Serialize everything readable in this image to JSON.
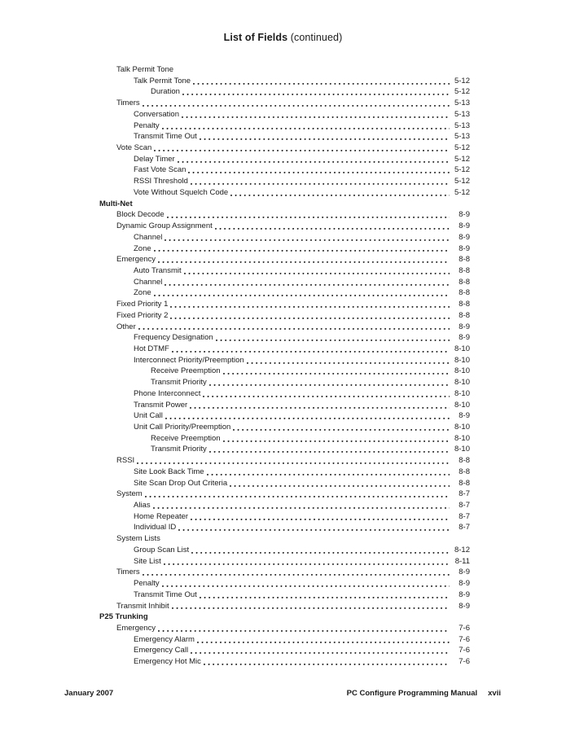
{
  "header": {
    "title_main": "List of Fields",
    "title_suffix": " (continued)"
  },
  "toc": {
    "entries": [
      {
        "level": 1,
        "label": "Talk Permit Tone",
        "page": null
      },
      {
        "level": 2,
        "label": "Talk Permit Tone",
        "page": "5-12"
      },
      {
        "level": 3,
        "label": "Duration",
        "page": "5-12"
      },
      {
        "level": 1,
        "label": "Timers",
        "page": "5-13"
      },
      {
        "level": 2,
        "label": "Conversation",
        "page": "5-13"
      },
      {
        "level": 2,
        "label": "Penalty",
        "page": "5-13"
      },
      {
        "level": 2,
        "label": "Transmit Time Out",
        "page": "5-13"
      },
      {
        "level": 1,
        "label": "Vote Scan",
        "page": "5-12"
      },
      {
        "level": 2,
        "label": "Delay Timer",
        "page": "5-12"
      },
      {
        "level": 2,
        "label": "Fast Vote Scan",
        "page": "5-12"
      },
      {
        "level": 2,
        "label": "RSSI Threshold",
        "page": "5-12"
      },
      {
        "level": 2,
        "label": "Vote Without Squelch Code",
        "page": "5-12"
      },
      {
        "level": 0,
        "label": "Multi-Net",
        "page": null,
        "bold": true
      },
      {
        "level": 1,
        "label": "Block Decode",
        "page": "8-9"
      },
      {
        "level": 1,
        "label": "Dynamic Group Assignment",
        "page": "8-9"
      },
      {
        "level": 2,
        "label": "Channel",
        "page": "8-9"
      },
      {
        "level": 2,
        "label": "Zone",
        "page": "8-9"
      },
      {
        "level": 1,
        "label": "Emergency",
        "page": "8-8"
      },
      {
        "level": 2,
        "label": "Auto Transmit",
        "page": "8-8"
      },
      {
        "level": 2,
        "label": "Channel",
        "page": "8-8"
      },
      {
        "level": 2,
        "label": "Zone",
        "page": "8-8"
      },
      {
        "level": 1,
        "label": "Fixed Priority 1",
        "page": "8-8"
      },
      {
        "level": 1,
        "label": "Fixed Priority 2",
        "page": "8-8"
      },
      {
        "level": 1,
        "label": "Other",
        "page": "8-9"
      },
      {
        "level": 2,
        "label": "Frequency Designation",
        "page": "8-9"
      },
      {
        "level": 2,
        "label": "Hot DTMF",
        "page": "8-10"
      },
      {
        "level": 2,
        "label": "Interconnect Priority/Preemption",
        "page": "8-10"
      },
      {
        "level": 3,
        "label": "Receive Preemption",
        "page": "8-10"
      },
      {
        "level": 3,
        "label": "Transmit Priority",
        "page": "8-10"
      },
      {
        "level": 2,
        "label": "Phone Interconnect",
        "page": "8-10"
      },
      {
        "level": 2,
        "label": "Transmit Power",
        "page": "8-10"
      },
      {
        "level": 2,
        "label": "Unit Call",
        "page": "8-9"
      },
      {
        "level": 2,
        "label": "Unit Call Priority/Preemption",
        "page": "8-10"
      },
      {
        "level": 3,
        "label": "Receive Preemption",
        "page": "8-10"
      },
      {
        "level": 3,
        "label": "Transmit Priority",
        "page": "8-10"
      },
      {
        "level": 1,
        "label": "RSSI",
        "page": "8-8"
      },
      {
        "level": 2,
        "label": "Site Look Back Time",
        "page": "8-8"
      },
      {
        "level": 2,
        "label": "Site Scan Drop Out Criteria",
        "page": "8-8"
      },
      {
        "level": 1,
        "label": "System",
        "page": "8-7"
      },
      {
        "level": 2,
        "label": "Alias",
        "page": "8-7"
      },
      {
        "level": 2,
        "label": "Home Repeater",
        "page": "8-7"
      },
      {
        "level": 2,
        "label": "Individual ID",
        "page": "8-7"
      },
      {
        "level": 1,
        "label": "System Lists",
        "page": null
      },
      {
        "level": 2,
        "label": "Group Scan List",
        "page": "8-12"
      },
      {
        "level": 2,
        "label": "Site List",
        "page": "8-11"
      },
      {
        "level": 1,
        "label": "Timers",
        "page": "8-9"
      },
      {
        "level": 2,
        "label": "Penalty",
        "page": "8-9"
      },
      {
        "level": 2,
        "label": "Transmit Time Out",
        "page": "8-9"
      },
      {
        "level": 1,
        "label": "Transmit Inhibit",
        "page": "8-9"
      },
      {
        "level": 0,
        "label": "P25 Trunking",
        "page": null,
        "bold": true
      },
      {
        "level": 1,
        "label": "Emergency",
        "page": "7-6"
      },
      {
        "level": 2,
        "label": "Emergency Alarm",
        "page": "7-6"
      },
      {
        "level": 2,
        "label": "Emergency Call",
        "page": "7-6"
      },
      {
        "level": 2,
        "label": "Emergency Hot Mic",
        "page": "7-6"
      }
    ]
  },
  "footer": {
    "date": "January 2007",
    "manual_name": "PC Configure Programming Manual",
    "page_number": "xvii"
  }
}
